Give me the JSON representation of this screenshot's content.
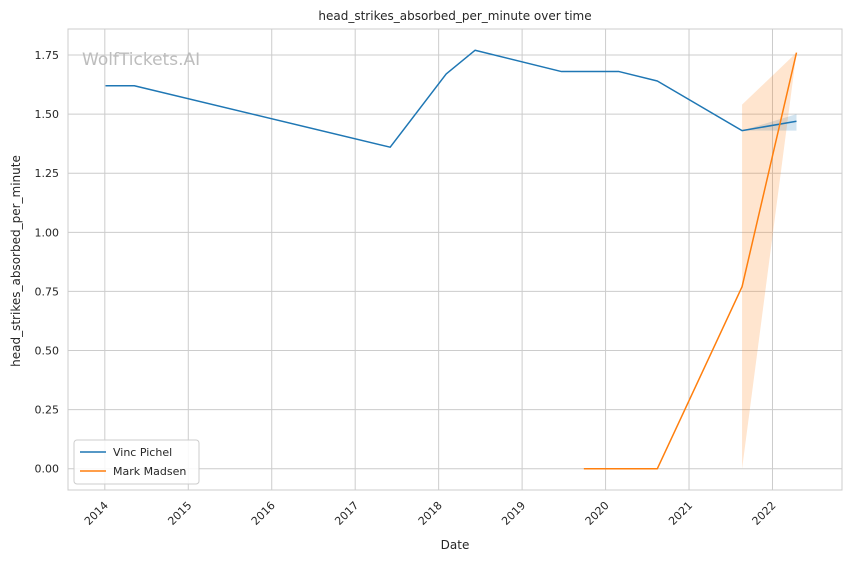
{
  "watermark": "WolfTickets.AI",
  "colors": {
    "background": "#ffffff",
    "grid": "#cccccc",
    "frame": "#cccccc",
    "series_1": "#1f77b4",
    "series_2": "#ff7f0e"
  },
  "chart_data": {
    "type": "line",
    "title": "head_strikes_absorbed_per_minute over time",
    "xlabel": "Date",
    "ylabel": "head_strikes_absorbed_per_minute",
    "x_tick_labels": [
      "2014",
      "2015",
      "2016",
      "2017",
      "2018",
      "2019",
      "2020",
      "2021",
      "2022"
    ],
    "y_tick_labels": [
      "0.00",
      "0.25",
      "0.50",
      "0.75",
      "1.00",
      "1.25",
      "1.50",
      "1.75"
    ],
    "x_range": [
      "2013-07-24",
      "2022-11-01"
    ],
    "ylim": [
      -0.09,
      1.86
    ],
    "grid": true,
    "legend_position": "lower-left",
    "series": [
      {
        "name": "Vinc Pichel",
        "color": "#1f77b4",
        "points": [
          {
            "x": "2014-01-04",
            "y": 1.62
          },
          {
            "x": "2014-05-10",
            "y": 1.62
          },
          {
            "x": "2017-06-03",
            "y": 1.36
          },
          {
            "x": "2018-02-03",
            "y": 1.67
          },
          {
            "x": "2018-06-09",
            "y": 1.77
          },
          {
            "x": "2019-06-22",
            "y": 1.68
          },
          {
            "x": "2020-02-29",
            "y": 1.68
          },
          {
            "x": "2020-08-15",
            "y": 1.64
          },
          {
            "x": "2021-08-21",
            "y": 1.43
          },
          {
            "x": "2022-04-16",
            "y": 1.47
          }
        ],
        "band": [
          {
            "x": "2021-08-21",
            "lo": 1.43,
            "hi": 1.43
          },
          {
            "x": "2022-04-16",
            "lo": 1.43,
            "hi": 1.5
          }
        ]
      },
      {
        "name": "Mark Madsen",
        "color": "#ff7f0e",
        "points": [
          {
            "x": "2019-09-28",
            "y": 0.0
          },
          {
            "x": "2020-08-15",
            "y": 0.0
          },
          {
            "x": "2021-08-21",
            "y": 0.77
          },
          {
            "x": "2022-04-16",
            "y": 1.76
          }
        ],
        "band": [
          {
            "x": "2021-08-21",
            "lo": 0.0,
            "hi": 1.54
          },
          {
            "x": "2022-04-16",
            "lo": 1.76,
            "hi": 1.76
          }
        ]
      }
    ]
  }
}
